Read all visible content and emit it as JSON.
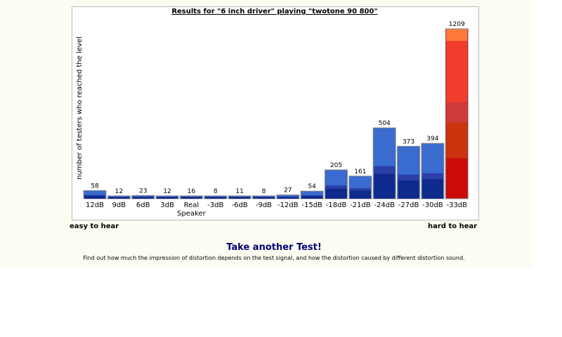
{
  "chart_data": {
    "type": "bar",
    "title": "Results for \"6 inch driver\" playing \"twotone 90 800\"",
    "ylabel": "number of testers who reached the level",
    "xlabel": "",
    "categories": [
      "12dB",
      "9dB",
      "6dB",
      "3dB",
      "Real Speaker",
      "-3dB",
      "-6dB",
      "-9dB",
      "-12dB",
      "-15dB",
      "-18dB",
      "-21dB",
      "-24dB",
      "-27dB",
      "-30dB",
      "-33dB"
    ],
    "values": [
      58,
      12,
      23,
      12,
      16,
      8,
      11,
      8,
      27,
      54,
      205,
      161,
      504,
      373,
      394,
      1209
    ],
    "ylim": [
      0,
      1209
    ],
    "grid": false,
    "colors": {
      "bar_light": "#3a6bcf",
      "bar_mid": "#2a3fa8",
      "bar_dark": "#0e2a8c",
      "hot_top": "#ff7a3a",
      "hot_upper": "#f23c2e",
      "hot_mid": "#cf3a3a",
      "hot_lower": "#c9330d",
      "hot_bottom": "#cc0b0b"
    }
  },
  "axis_ends": {
    "easy": "easy to hear",
    "hard": "hard to hear"
  },
  "cta": {
    "link": "Take another Test!",
    "description": "Find out how much the impression of distortion depends on the test signal, and how the distortion caused by different distortion sound."
  }
}
